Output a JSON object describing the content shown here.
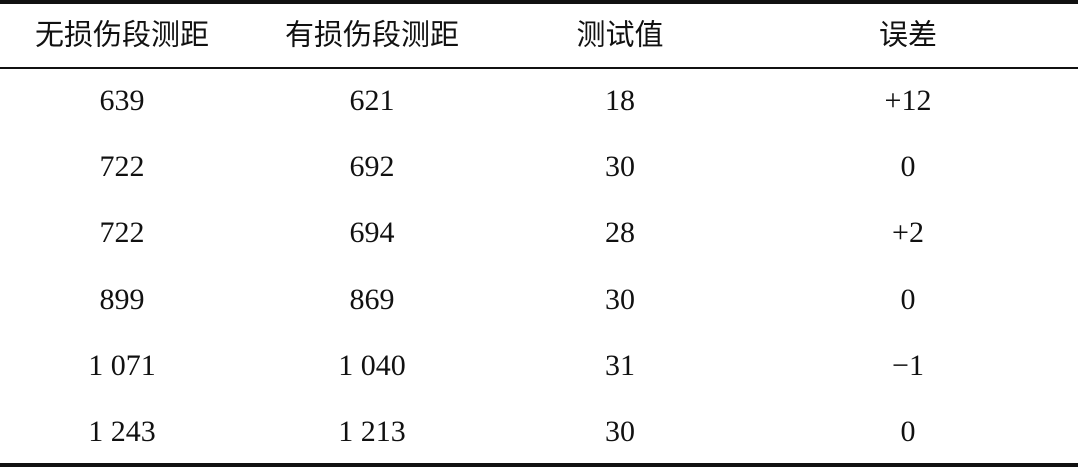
{
  "table": {
    "header": [
      "无损伤段测距",
      "有损伤段测距",
      "测试值",
      "误差"
    ],
    "rows": [
      [
        "639",
        "621",
        "18",
        "+12"
      ],
      [
        "722",
        "692",
        "30",
        "0"
      ],
      [
        "722",
        "694",
        "28",
        "+2"
      ],
      [
        "899",
        "869",
        "30",
        "0"
      ],
      [
        "1 071",
        "1 040",
        "31",
        "−1"
      ],
      [
        "1 243",
        "1 213",
        "30",
        "0"
      ]
    ]
  }
}
